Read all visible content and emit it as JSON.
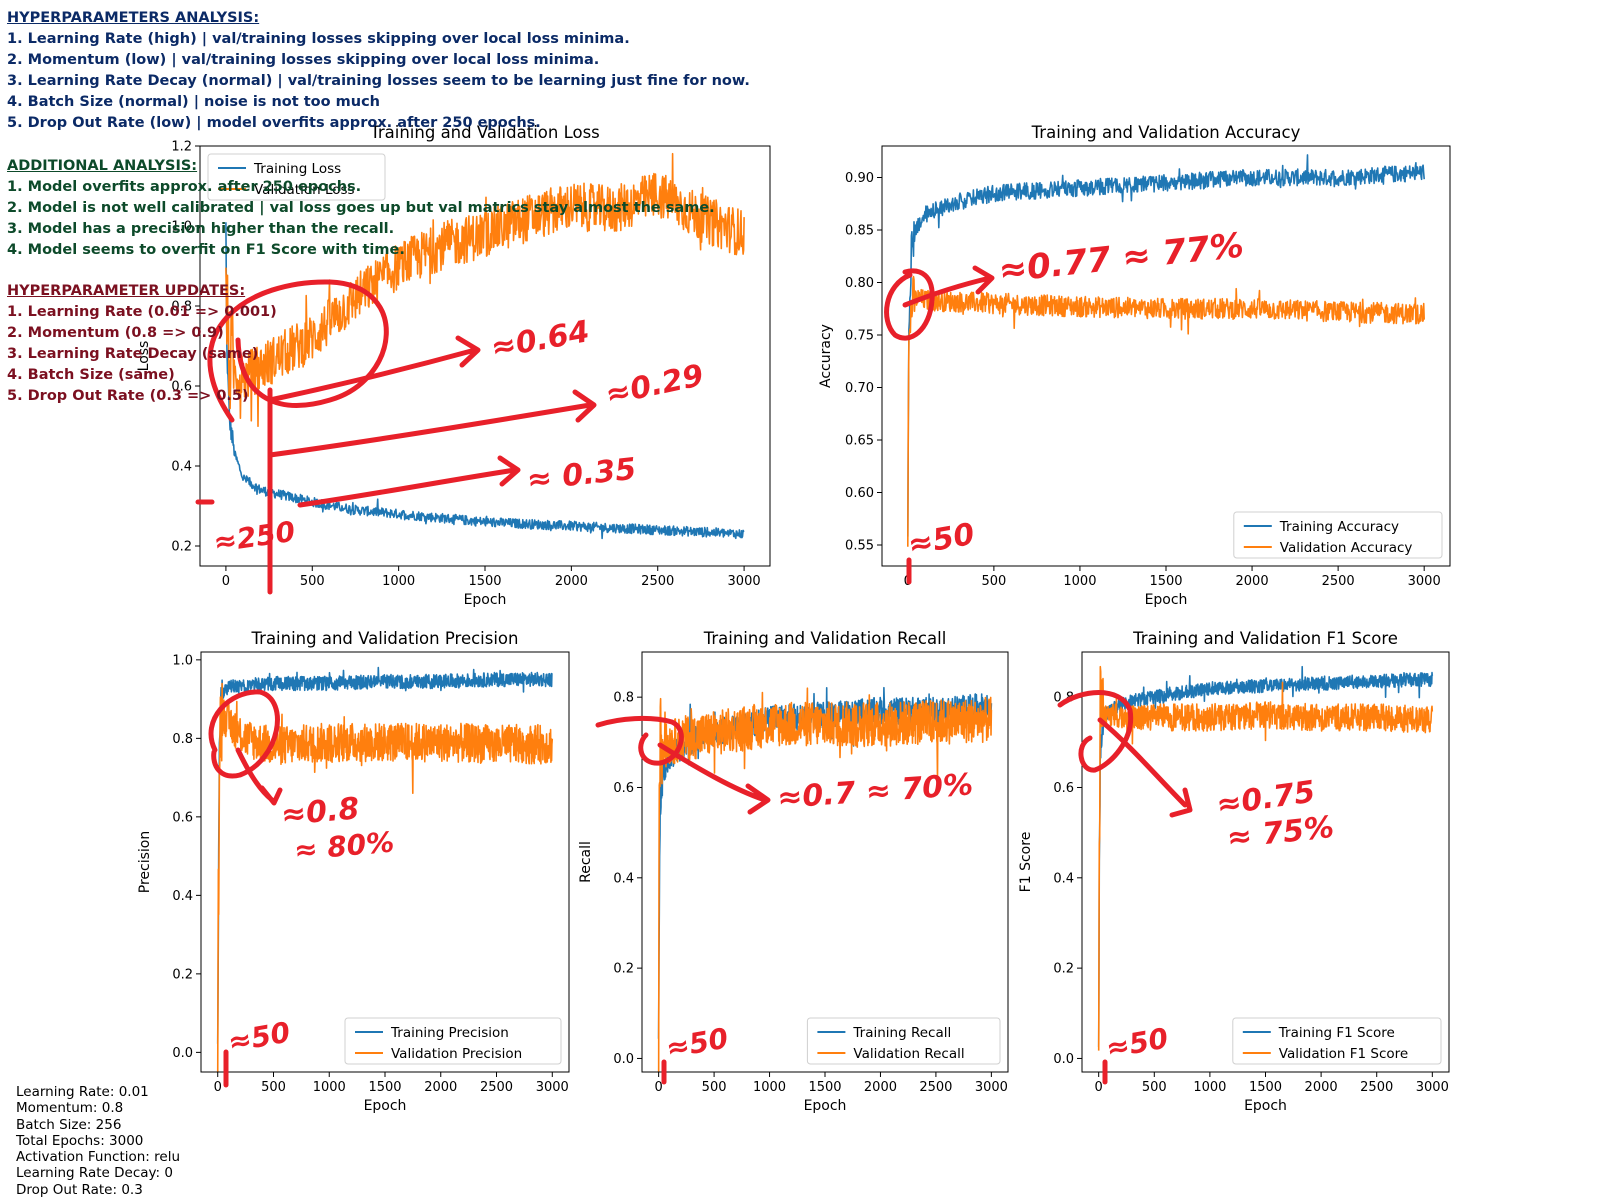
{
  "notes": {
    "hyper_title": "HYPERPARAMETERS ANALYSIS:",
    "hyper": [
      "1. Learning Rate (high) | val/training losses skipping over local loss minima.",
      "2. Momentum (low) | val/training losses skipping over local loss minima.",
      "3. Learning Rate Decay (normal) | val/training losses seem to be learning just fine for now.",
      "4. Batch Size (normal) | noise is not too much",
      "5. Drop Out Rate (low) | model overfits approx. after 250 epochs."
    ],
    "additional_title": "ADDITIONAL ANALYSIS:",
    "additional": [
      "1. Model overfits approx. after 250 epochs.",
      "2. Model is not well calibrated | val loss goes up but val matrics stay almost the same.",
      "3. Model has a precision higher than the recall.",
      "4. Model seems to overfit on F1 Score with time."
    ],
    "updates_title": "HYPERPARAMETER UPDATES:",
    "updates": [
      "1. Learning Rate (0.01 => 0.001)",
      "2. Momentum (0.8 => 0.9)",
      "3. Learning Rate Decay (same)",
      "4. Batch Size (same)",
      "5. Drop Out Rate (0.3 => 0.5)"
    ]
  },
  "config": [
    "Learning Rate: 0.01",
    "Momentum: 0.8",
    "Batch Size: 256",
    "Total Epochs: 3000",
    "Activation Function: relu",
    "Learning Rate Decay: 0",
    "Drop Out Rate: 0.3"
  ],
  "colors": {
    "training": "#1f77b4",
    "validation": "#ff7f0e",
    "annotation": "#e8202a"
  },
  "chart_data": [
    {
      "type": "line",
      "title": "Training and Validation Loss",
      "xlabel": "Epoch",
      "ylabel": "Loss",
      "xlim": [
        -150,
        3150
      ],
      "ylim": [
        0.15,
        1.2
      ],
      "xticks": [
        0,
        500,
        1000,
        1500,
        2000,
        2500,
        3000
      ],
      "yticks": [
        0.2,
        0.4,
        0.6,
        0.8,
        1.0,
        1.2
      ],
      "legend": "top-left",
      "series": [
        {
          "name": "Training Loss",
          "x": [
            0,
            5,
            20,
            50,
            100,
            200,
            300,
            500,
            750,
            1000,
            1500,
            2000,
            2500,
            3000
          ],
          "y": [
            1.0,
            0.7,
            0.52,
            0.43,
            0.37,
            0.34,
            0.33,
            0.31,
            0.29,
            0.28,
            0.26,
            0.25,
            0.24,
            0.23
          ]
        },
        {
          "name": "Validation Loss",
          "x": [
            0,
            5,
            30,
            100,
            250,
            500,
            750,
            1000,
            1250,
            1500,
            1750,
            2000,
            2250,
            2500,
            2750,
            3000
          ],
          "y": [
            1.0,
            0.75,
            0.64,
            0.62,
            0.66,
            0.72,
            0.82,
            0.9,
            0.95,
            0.98,
            1.02,
            1.05,
            1.04,
            1.08,
            1.02,
            0.98
          ]
        }
      ]
    },
    {
      "type": "line",
      "title": "Training and Validation Accuracy",
      "xlabel": "Epoch",
      "ylabel": "Accuracy",
      "xlim": [
        -150,
        3150
      ],
      "ylim": [
        0.53,
        0.93
      ],
      "xticks": [
        0,
        500,
        1000,
        1500,
        2000,
        2500,
        3000
      ],
      "yticks": [
        0.55,
        0.6,
        0.65,
        0.7,
        0.75,
        0.8,
        0.85,
        0.9
      ],
      "legend": "bottom-right",
      "series": [
        {
          "name": "Training Accuracy",
          "x": [
            0,
            5,
            20,
            50,
            100,
            250,
            500,
            1000,
            1500,
            2000,
            2500,
            3000
          ],
          "y": [
            0.55,
            0.75,
            0.83,
            0.85,
            0.865,
            0.875,
            0.885,
            0.89,
            0.895,
            0.9,
            0.9,
            0.905
          ]
        },
        {
          "name": "Validation Accuracy",
          "x": [
            0,
            5,
            20,
            50,
            100,
            250,
            500,
            1000,
            1500,
            2000,
            2500,
            3000
          ],
          "y": [
            0.57,
            0.73,
            0.78,
            0.785,
            0.783,
            0.782,
            0.78,
            0.777,
            0.775,
            0.775,
            0.772,
            0.77
          ]
        }
      ]
    },
    {
      "type": "line",
      "title": "Training and Validation Precision",
      "xlabel": "Epoch",
      "ylabel": "Precision",
      "xlim": [
        -150,
        3150
      ],
      "ylim": [
        -0.05,
        1.02
      ],
      "xticks": [
        0,
        500,
        1000,
        1500,
        2000,
        2500,
        3000
      ],
      "yticks": [
        0.0,
        0.2,
        0.4,
        0.6,
        0.8,
        1.0
      ],
      "legend": "bottom-right",
      "series": [
        {
          "name": "Training Precision",
          "x": [
            0,
            5,
            15,
            30,
            60,
            100,
            250,
            500,
            1000,
            1500,
            2000,
            2500,
            3000
          ],
          "y": [
            0.0,
            0.3,
            0.8,
            0.9,
            0.92,
            0.93,
            0.935,
            0.94,
            0.94,
            0.945,
            0.945,
            0.95,
            0.95
          ]
        },
        {
          "name": "Validation Precision",
          "x": [
            0,
            5,
            15,
            30,
            60,
            100,
            250,
            500,
            1000,
            1500,
            2000,
            2500,
            3000
          ],
          "y": [
            0.0,
            0.3,
            0.78,
            0.85,
            0.86,
            0.84,
            0.8,
            0.78,
            0.79,
            0.79,
            0.79,
            0.785,
            0.785
          ]
        }
      ]
    },
    {
      "type": "line",
      "title": "Training and Validation Recall",
      "xlabel": "Epoch",
      "ylabel": "Recall",
      "xlim": [
        -150,
        3150
      ],
      "ylim": [
        -0.03,
        0.9
      ],
      "xticks": [
        0,
        500,
        1000,
        1500,
        2000,
        2500,
        3000
      ],
      "yticks": [
        0.0,
        0.2,
        0.4,
        0.6,
        0.8
      ],
      "legend": "bottom-right",
      "series": [
        {
          "name": "Training Recall",
          "x": [
            0,
            5,
            15,
            30,
            60,
            100,
            250,
            500,
            1000,
            1500,
            2000,
            2500,
            3000
          ],
          "y": [
            0.0,
            0.3,
            0.55,
            0.62,
            0.65,
            0.67,
            0.7,
            0.72,
            0.75,
            0.76,
            0.77,
            0.77,
            0.78
          ]
        },
        {
          "name": "Validation Recall",
          "x": [
            0,
            5,
            15,
            30,
            60,
            100,
            250,
            500,
            1000,
            1500,
            2000,
            2500,
            3000
          ],
          "y": [
            0.0,
            0.5,
            0.78,
            0.7,
            0.69,
            0.7,
            0.71,
            0.72,
            0.74,
            0.74,
            0.74,
            0.745,
            0.75
          ]
        }
      ]
    },
    {
      "type": "line",
      "title": "Training and Validation F1 Score",
      "xlabel": "Epoch",
      "ylabel": "F1 Score",
      "xlim": [
        -150,
        3150
      ],
      "ylim": [
        -0.03,
        0.9
      ],
      "xticks": [
        0,
        500,
        1000,
        1500,
        2000,
        2500,
        3000
      ],
      "yticks": [
        0.0,
        0.2,
        0.4,
        0.6,
        0.8
      ],
      "legend": "bottom-right",
      "series": [
        {
          "name": "Training F1 Score",
          "x": [
            0,
            5,
            15,
            30,
            60,
            100,
            250,
            500,
            1000,
            1500,
            2000,
            2500,
            3000
          ],
          "y": [
            0.0,
            0.4,
            0.68,
            0.74,
            0.76,
            0.77,
            0.79,
            0.8,
            0.82,
            0.825,
            0.83,
            0.835,
            0.84
          ]
        },
        {
          "name": "Validation F1 Score",
          "x": [
            0,
            5,
            15,
            30,
            60,
            100,
            250,
            500,
            1000,
            1500,
            2000,
            2500,
            3000
          ],
          "y": [
            0.0,
            0.4,
            0.8,
            0.77,
            0.76,
            0.76,
            0.755,
            0.755,
            0.755,
            0.76,
            0.755,
            0.755,
            0.75
          ]
        }
      ]
    }
  ],
  "annotations": {
    "loss": [
      "≈0.64",
      "≈0.29",
      "≈ 0.35",
      "≈250"
    ],
    "accuracy": [
      "≈0.77 ≈ 77%",
      "≈50"
    ],
    "precision": [
      "≈0.8",
      "≈ 80%",
      "≈50"
    ],
    "recall": [
      "≈0.7 ≈ 70%",
      "≈50"
    ],
    "f1": [
      "≈0.75",
      "≈ 75%",
      "≈50"
    ]
  }
}
